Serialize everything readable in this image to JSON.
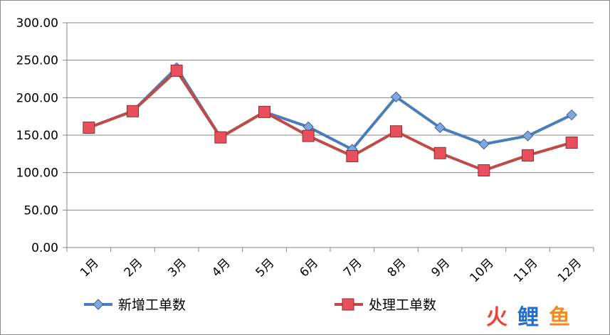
{
  "chart_data": {
    "type": "line",
    "categories": [
      "1月",
      "2月",
      "3月",
      "4月",
      "5月",
      "6月",
      "7月",
      "8月",
      "9月",
      "10月",
      "11月",
      "12月"
    ],
    "series": [
      {
        "name": "新增工单数",
        "color": "#4a7ebb",
        "marker": "diamond",
        "marker_fill": "#7ea7e0",
        "values": [
          160,
          182,
          240,
          147,
          181,
          161,
          131,
          201,
          160,
          138,
          149,
          177
        ]
      },
      {
        "name": "处理工单数",
        "color": "#be4b48",
        "marker": "square",
        "marker_fill": "#e8505d",
        "values": [
          160,
          182,
          236,
          147,
          181,
          149,
          122,
          155,
          126,
          103,
          123,
          140
        ]
      }
    ],
    "ylim": [
      0,
      300
    ],
    "y_ticks": [
      "0.00",
      "50.00",
      "100.00",
      "150.00",
      "200.00",
      "250.00",
      "300.00"
    ],
    "grid": true,
    "legend": "bottom",
    "title": "",
    "xlabel": "",
    "ylabel": ""
  },
  "watermark": {
    "char1": "火",
    "char2": "鲤",
    "char3": "鱼",
    "colors": [
      "#e9473a",
      "#1f6fd1",
      "#f08a24"
    ]
  }
}
